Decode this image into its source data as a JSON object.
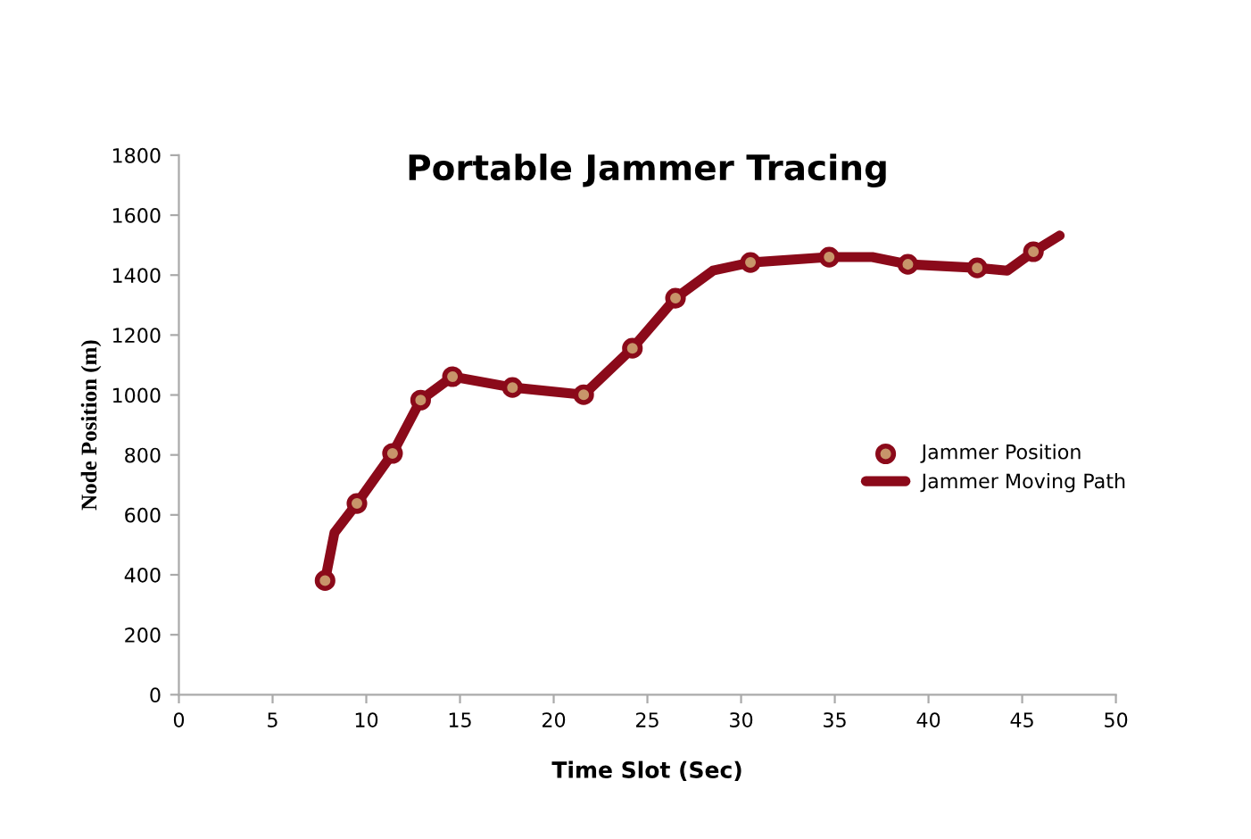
{
  "chart_data": {
    "type": "line",
    "title": "Portable Jammer Tracing",
    "xlabel": "Time Slot (Sec)",
    "ylabel": "Node Position (m)",
    "xlim": [
      0,
      50
    ],
    "xticks": [
      0,
      5,
      10,
      15,
      20,
      25,
      30,
      35,
      40,
      45,
      50
    ],
    "ylim": [
      0,
      1800
    ],
    "yticks": [
      0,
      200,
      400,
      600,
      800,
      1000,
      1200,
      1400,
      1600,
      1800
    ],
    "grid": false,
    "legend": "right",
    "series": [
      {
        "name": "Jammer Position",
        "type": "scatter",
        "color": "#8b0a1a",
        "marker": "circle",
        "x": [
          7.8,
          9.5,
          11.4,
          12.9,
          14.6,
          17.8,
          21.6,
          24.2,
          26.5,
          30.5,
          34.7,
          38.9,
          42.6,
          45.6
        ],
        "values": [
          381,
          638,
          805,
          983,
          1061,
          1025,
          1001,
          1156,
          1323,
          1442,
          1460,
          1436,
          1424,
          1478
        ]
      },
      {
        "name": "Jammer Moving Path",
        "color": "#8b0a1a",
        "marker": "none",
        "line_style": "solid",
        "x": [
          7.8,
          8.3,
          9.5,
          11.4,
          12.9,
          14.6,
          17.8,
          21.6,
          24.2,
          26.5,
          28.5,
          30.5,
          34.7,
          37,
          38.9,
          42.6,
          44.2,
          45.6,
          47.0
        ],
        "values": [
          381,
          540,
          638,
          805,
          983,
          1061,
          1025,
          1001,
          1156,
          1323,
          1415,
          1442,
          1460,
          1460,
          1436,
          1424,
          1415,
          1478,
          1532
        ]
      }
    ]
  }
}
